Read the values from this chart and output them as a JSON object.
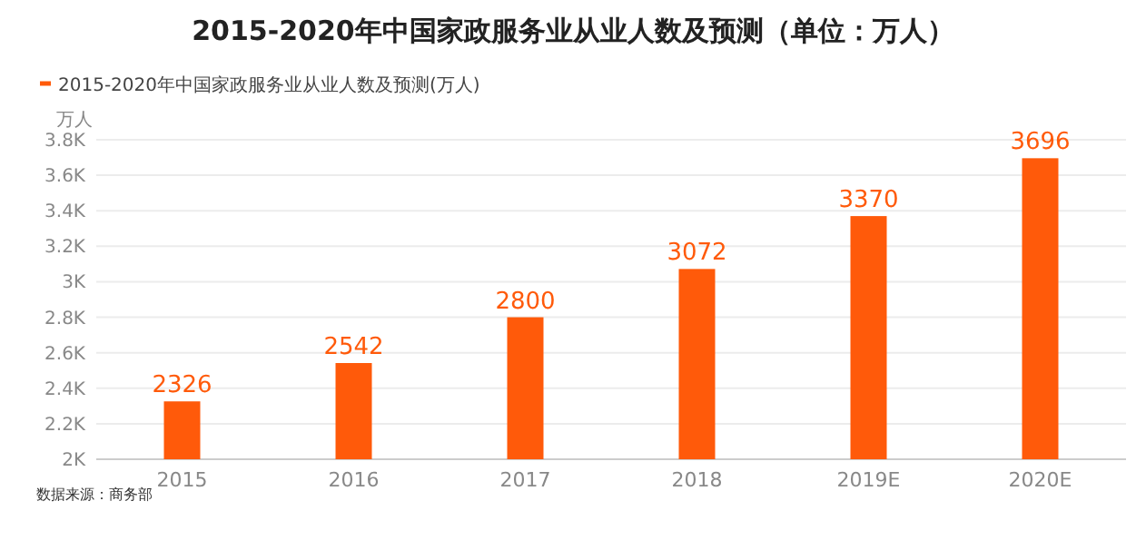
{
  "chart_data": {
    "type": "bar",
    "title": "2015-2020年中国家政服务业从业人数及预测（单位：万人）",
    "categories": [
      "2015",
      "2016",
      "2017",
      "2018",
      "2019E",
      "2020E"
    ],
    "series": [
      {
        "name": "2015-2020年中国家政服务业从业人数及预测(万人)",
        "color": "#ff5a0a",
        "values": [
          2326,
          2542,
          2800,
          3072,
          3370,
          3696
        ]
      }
    ],
    "ylabel": "万人",
    "ylim": [
      2000,
      3800
    ],
    "yticks": [
      {
        "value": 2000,
        "label": "2K"
      },
      {
        "value": 2200,
        "label": "2.2K"
      },
      {
        "value": 2400,
        "label": "2.4K"
      },
      {
        "value": 2600,
        "label": "2.6K"
      },
      {
        "value": 2800,
        "label": "2.8K"
      },
      {
        "value": 3000,
        "label": "3K"
      },
      {
        "value": 3200,
        "label": "3.2K"
      },
      {
        "value": 3400,
        "label": "3.4K"
      },
      {
        "value": 3600,
        "label": "3.6K"
      },
      {
        "value": 3800,
        "label": "3.8K"
      }
    ],
    "grid": "y",
    "legend": "top left",
    "data_labels": true,
    "annotations": [
      "数据来源：商务部"
    ]
  }
}
